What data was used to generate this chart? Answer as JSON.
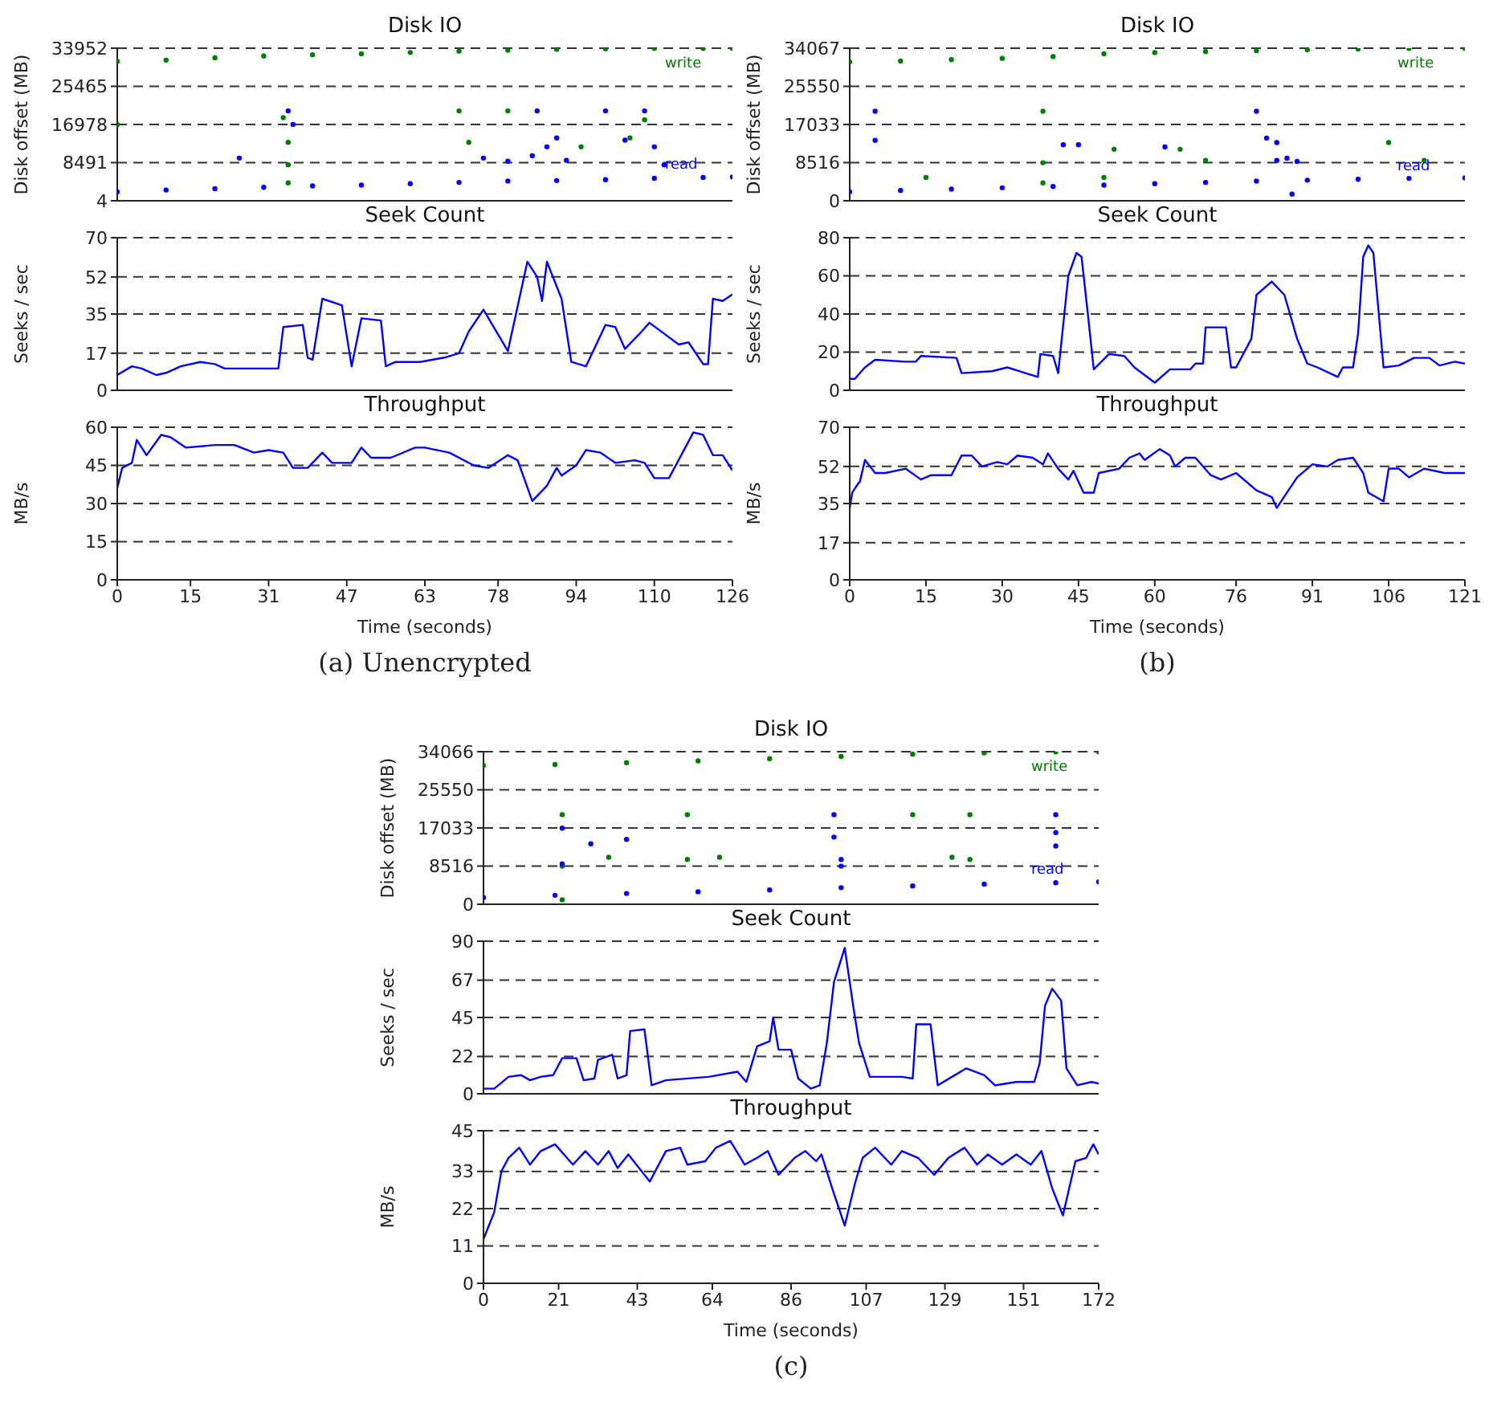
{
  "chart_data": [
    {
      "type": "scatter",
      "title": "Disk IO",
      "ylabel": "Disk offset (MB)",
      "xlim": [
        0,
        126
      ],
      "xticks": [
        0,
        15,
        31,
        47,
        63,
        78,
        94,
        110,
        126
      ],
      "ylim": [
        4,
        33952
      ],
      "yticks": [
        4,
        8491,
        16978,
        25465,
        33952
      ],
      "grid": "y",
      "tick_labels": "y",
      "marker": "circle",
      "series": [
        {
          "name": "write",
          "color": "#008000",
          "x": [
            34,
            35,
            35,
            35,
            70,
            72,
            80,
            95,
            105,
            108,
            0,
            0,
            10,
            20,
            30,
            40,
            50,
            60,
            70,
            80,
            90,
            100,
            110,
            120,
            126
          ],
          "values": [
            18500,
            13000,
            8000,
            4000,
            20000,
            13000,
            20000,
            12000,
            14000,
            18000,
            17000,
            31000,
            31300,
            31800,
            32200,
            32500,
            32700,
            33000,
            33300,
            33500,
            33700,
            33800,
            33900,
            33900,
            33900
          ]
        },
        {
          "name": "read",
          "color": "#0000ff",
          "x": [
            35,
            36,
            25,
            75,
            80,
            85,
            88,
            92,
            86,
            100,
            108,
            104,
            110,
            112,
            90,
            0,
            10,
            20,
            30,
            40,
            50,
            60,
            70,
            80,
            90,
            100,
            110,
            120,
            126
          ],
          "values": [
            20000,
            17000,
            9500,
            9500,
            8800,
            10000,
            12000,
            9000,
            20000,
            20000,
            20000,
            13500,
            12000,
            8000,
            14000,
            2000,
            2400,
            2700,
            3000,
            3300,
            3500,
            3800,
            4100,
            4400,
            4500,
            4700,
            5000,
            5200,
            5300
          ]
        }
      ]
    },
    {
      "type": "line",
      "title": "Seek Count",
      "ylabel": "Seeks / sec",
      "xlim": [
        0,
        126
      ],
      "xticks": [
        0,
        15,
        31,
        47,
        63,
        78,
        94,
        110,
        126
      ],
      "ylim": [
        0,
        70
      ],
      "yticks": [
        0,
        17,
        35,
        52,
        70
      ],
      "grid": "y",
      "tick_labels": "y",
      "series": [
        {
          "color": "#0000ff",
          "x": [
            0,
            3,
            5,
            8,
            10,
            13,
            17,
            20,
            22,
            33,
            34,
            38,
            39,
            40,
            42,
            46,
            48,
            50,
            54,
            55,
            57,
            62,
            67,
            70,
            72,
            75,
            80,
            84,
            86,
            87,
            88,
            91,
            93,
            96,
            100,
            102,
            104,
            107,
            109,
            115,
            117,
            120,
            121,
            122,
            124,
            126
          ],
          "values": [
            7,
            11,
            10,
            7,
            8,
            11,
            13,
            12,
            10,
            10,
            29,
            30,
            15,
            14,
            42,
            39,
            11,
            33,
            32,
            11,
            13,
            13,
            15,
            17,
            27,
            37,
            18,
            59,
            52,
            41,
            59,
            42,
            13,
            11,
            30,
            29,
            19,
            26,
            31,
            21,
            22,
            12,
            12,
            42,
            41,
            44
          ]
        }
      ]
    },
    {
      "type": "line",
      "title": "Throughput",
      "ylabel": "MB/s",
      "xlabel": "Time (seconds)",
      "annotations": [
        "(a) Unencrypted"
      ],
      "xlim": [
        0,
        126
      ],
      "xticks": [
        0,
        15,
        31,
        47,
        63,
        78,
        94,
        110,
        126
      ],
      "ylim": [
        0,
        60
      ],
      "yticks": [
        0,
        15,
        30,
        45,
        60
      ],
      "grid": "y",
      "series": [
        {
          "color": "#0000ff",
          "x": [
            0,
            1,
            3,
            4,
            6,
            9,
            11,
            14,
            20,
            24,
            28,
            31,
            34,
            36,
            39,
            42,
            44,
            48,
            50,
            52,
            56,
            61,
            63,
            68,
            73,
            76,
            80,
            82,
            85,
            88,
            90,
            91,
            94,
            96,
            99,
            102,
            106,
            108,
            110,
            113,
            118,
            120,
            122,
            124,
            126
          ],
          "values": [
            36,
            44,
            46,
            55,
            49,
            57,
            56,
            52,
            53,
            53,
            50,
            51,
            50,
            44,
            44,
            50,
            46,
            46,
            52,
            48,
            48,
            52,
            52,
            50,
            45,
            44,
            49,
            47,
            31,
            37,
            44,
            41,
            45,
            51,
            50,
            46,
            47,
            46,
            40,
            40,
            58,
            57,
            49,
            49,
            43
          ]
        }
      ]
    },
    {
      "type": "scatter",
      "title": "Disk IO",
      "ylabel": "Disk offset (MB)",
      "xlim": [
        0,
        121
      ],
      "xticks": [
        0,
        15,
        30,
        45,
        60,
        76,
        91,
        106,
        121
      ],
      "ylim": [
        0,
        34067
      ],
      "yticks": [
        0,
        8516,
        17033,
        25550,
        34067
      ],
      "grid": "y",
      "tick_labels": "y",
      "marker": "circle",
      "series": [
        {
          "name": "write",
          "color": "#008000",
          "x": [
            38,
            38,
            38,
            15,
            50,
            52,
            65,
            106,
            113,
            70,
            0,
            10,
            20,
            30,
            40,
            50,
            60,
            70,
            80,
            90,
            100,
            110,
            121
          ],
          "values": [
            20000,
            8500,
            4000,
            5200,
            5200,
            11500,
            11500,
            13000,
            9000,
            9000,
            31000,
            31200,
            31500,
            31800,
            32200,
            32800,
            33100,
            33300,
            33500,
            33700,
            33900,
            34000,
            34000
          ]
        },
        {
          "name": "read",
          "color": "#0000ff",
          "x": [
            5,
            5,
            42,
            45,
            62,
            80,
            82,
            84,
            86,
            88,
            84,
            87,
            0,
            10,
            20,
            30,
            40,
            50,
            60,
            70,
            80,
            90,
            100,
            110,
            121
          ],
          "values": [
            20000,
            13500,
            12500,
            12500,
            12000,
            20000,
            14000,
            9000,
            9500,
            8800,
            13000,
            1500,
            2000,
            2300,
            2600,
            2900,
            3200,
            3500,
            3800,
            4100,
            4400,
            4600,
            4800,
            5000,
            5100
          ]
        }
      ]
    },
    {
      "type": "line",
      "title": "Seek Count",
      "ylabel": "Seeks / sec",
      "xlim": [
        0,
        121
      ],
      "xticks": [
        0,
        15,
        30,
        45,
        60,
        76,
        91,
        106,
        121
      ],
      "ylim": [
        0,
        80
      ],
      "yticks": [
        0,
        20,
        40,
        60,
        80
      ],
      "grid": "y",
      "tick_labels": "y",
      "series": [
        {
          "color": "#0000ff",
          "x": [
            0,
            1,
            3,
            5,
            11,
            13,
            14,
            21,
            22,
            28,
            31,
            37,
            37.5,
            40,
            41,
            43,
            44.6,
            45.6,
            47,
            48,
            51,
            54,
            56,
            60,
            63,
            67,
            68,
            69.5,
            70,
            74,
            75,
            76,
            79,
            80,
            83,
            85.5,
            88,
            90,
            92,
            96,
            97,
            99,
            100,
            101,
            102,
            103,
            105,
            108,
            111,
            114,
            116,
            119,
            121
          ],
          "values": [
            6,
            6,
            12,
            16,
            15,
            15,
            18,
            17,
            9,
            10,
            12,
            7,
            19,
            18,
            9,
            60,
            72,
            70,
            36,
            11,
            19,
            18,
            12,
            4,
            11,
            11,
            14,
            14,
            33,
            33,
            12,
            12,
            27,
            50,
            57,
            50,
            27,
            14,
            12,
            7,
            12,
            12,
            30,
            70,
            76,
            72,
            12,
            13,
            17,
            17,
            13,
            15,
            14
          ]
        }
      ]
    },
    {
      "type": "line",
      "title": "Throughput",
      "ylabel": "MB/s",
      "xlabel": "Time (seconds)",
      "annotations": [
        "(b)"
      ],
      "xlim": [
        0,
        121
      ],
      "xticks": [
        0,
        15,
        30,
        45,
        60,
        76,
        91,
        106,
        121
      ],
      "ylim": [
        0,
        70
      ],
      "yticks": [
        0,
        17,
        35,
        52,
        70
      ],
      "grid": "y",
      "series": [
        {
          "color": "#0000ff",
          "x": [
            0,
            0.5,
            1.6,
            2,
            3,
            5,
            7,
            11,
            14,
            16,
            20,
            22,
            24,
            26,
            29,
            31,
            33,
            36,
            38,
            39,
            41,
            43,
            44,
            46,
            48,
            49,
            53,
            55,
            57,
            58,
            61,
            63,
            64,
            66,
            68,
            71,
            73,
            76,
            80,
            83,
            84,
            88,
            91,
            94,
            96,
            99,
            101,
            102,
            105,
            106,
            108,
            110,
            113,
            117,
            121
          ],
          "values": [
            33,
            40,
            44,
            45,
            55,
            49,
            49,
            51,
            46,
            48,
            48,
            57,
            57,
            52,
            54,
            53,
            57,
            56,
            53,
            58,
            51,
            46,
            50,
            40,
            40,
            49,
            51,
            56,
            58,
            55,
            60,
            57,
            52,
            56,
            56,
            48,
            46,
            49,
            41,
            38,
            33,
            47,
            53,
            52,
            55,
            56,
            49,
            40,
            36,
            51,
            51,
            47,
            51,
            49,
            49
          ]
        }
      ]
    },
    {
      "type": "scatter",
      "title": "Disk IO",
      "ylabel": "Disk offset (MB)",
      "xlim": [
        0,
        172
      ],
      "xticks": [
        0,
        21,
        43,
        64,
        86,
        107,
        129,
        151,
        172
      ],
      "ylim": [
        0,
        34066
      ],
      "yticks": [
        0,
        8516,
        17033,
        25550,
        34066
      ],
      "grid": "y",
      "tick_labels": "y",
      "marker": "circle",
      "series": [
        {
          "name": "write",
          "color": "#008000",
          "x": [
            22,
            22,
            22,
            57,
            57,
            35,
            66,
            120,
            136,
            136,
            131,
            0,
            20,
            40,
            60,
            80,
            100,
            120,
            140,
            160,
            172
          ],
          "values": [
            20000,
            8500,
            1000,
            20000,
            10000,
            10500,
            10500,
            20000,
            20000,
            10000,
            10500,
            31000,
            31200,
            31600,
            32000,
            32500,
            33000,
            33500,
            33800,
            34000,
            34000
          ]
        },
        {
          "name": "read",
          "color": "#0000ff",
          "x": [
            22,
            22,
            98,
            98,
            100,
            100,
            160,
            160,
            160,
            40,
            30,
            0,
            20,
            40,
            60,
            80,
            100,
            120,
            140,
            160,
            172
          ],
          "values": [
            17000,
            9000,
            20000,
            15000,
            10000,
            8500,
            20000,
            16000,
            13000,
            14500,
            13500,
            1500,
            2000,
            2400,
            2800,
            3200,
            3700,
            4100,
            4500,
            4800,
            5000
          ]
        }
      ]
    },
    {
      "type": "line",
      "title": "Seek Count",
      "ylabel": "Seeks / sec",
      "xlim": [
        0,
        172
      ],
      "xticks": [
        0,
        21,
        43,
        64,
        86,
        107,
        129,
        151,
        172
      ],
      "ylim": [
        0,
        90
      ],
      "yticks": [
        0,
        22,
        45,
        67,
        90
      ],
      "grid": "y",
      "tick_labels": "y",
      "series": [
        {
          "color": "#0000ff",
          "x": [
            0,
            3,
            7,
            10.5,
            13,
            16,
            19.5,
            22,
            26,
            28,
            31,
            32,
            36,
            37.5,
            40,
            41,
            45,
            47,
            51,
            63,
            71,
            73.5,
            76.5,
            80,
            81,
            82.5,
            86,
            88,
            91.5,
            94,
            96,
            98,
            101,
            103.5,
            105,
            108,
            112.6,
            117,
            120,
            121,
            125,
            127,
            131,
            135,
            140,
            143,
            149,
            154,
            155.5,
            157,
            159,
            161.5,
            163,
            166,
            170,
            172
          ],
          "values": [
            3,
            3,
            10,
            11,
            8,
            10,
            11,
            21,
            21,
            8,
            9,
            20,
            23,
            9,
            11,
            37,
            38,
            5,
            8,
            10,
            13,
            7,
            28,
            31,
            45,
            26,
            26,
            9,
            3,
            5,
            30,
            66,
            86,
            50,
            30,
            10,
            10,
            10,
            9,
            41,
            41,
            5,
            10,
            15,
            11,
            5,
            7,
            7,
            18,
            52,
            62,
            55,
            15,
            5,
            7,
            6
          ]
        }
      ]
    },
    {
      "type": "line",
      "title": "Throughput",
      "ylabel": "MB/s",
      "xlabel": "Time (seconds)",
      "annotations": [
        "(c)"
      ],
      "xlim": [
        0,
        172
      ],
      "xticks": [
        0,
        21,
        43,
        64,
        86,
        107,
        129,
        151,
        172
      ],
      "ylim": [
        0,
        45
      ],
      "yticks": [
        0,
        11,
        22,
        33,
        45
      ],
      "grid": "y",
      "series": [
        {
          "color": "#0000ff",
          "x": [
            0,
            3,
            5,
            7,
            10,
            13,
            16,
            20,
            25,
            28.5,
            32,
            35,
            37.5,
            40.5,
            43.5,
            46.5,
            48,
            51,
            55,
            57,
            62,
            65,
            69,
            73,
            76.5,
            79.5,
            82.5,
            87,
            90,
            93,
            94.5,
            97.5,
            101,
            104,
            106,
            109.5,
            114,
            117,
            121.5,
            126,
            130,
            134.5,
            138,
            141,
            145,
            149,
            153,
            156,
            159,
            162,
            165.5,
            168.5,
            170.5,
            172
          ],
          "values": [
            13,
            21,
            33,
            37,
            40,
            35,
            39,
            41,
            35,
            39,
            35,
            39,
            34,
            38,
            34,
            30,
            33,
            39,
            40,
            35,
            36,
            40,
            42,
            35,
            37,
            39,
            32,
            37,
            39,
            36,
            38,
            28,
            17,
            30,
            37,
            40,
            35,
            39,
            37,
            32,
            37,
            40,
            35,
            38,
            35,
            38,
            35,
            39,
            28,
            20,
            36,
            37,
            41,
            38
          ]
        }
      ]
    }
  ]
}
